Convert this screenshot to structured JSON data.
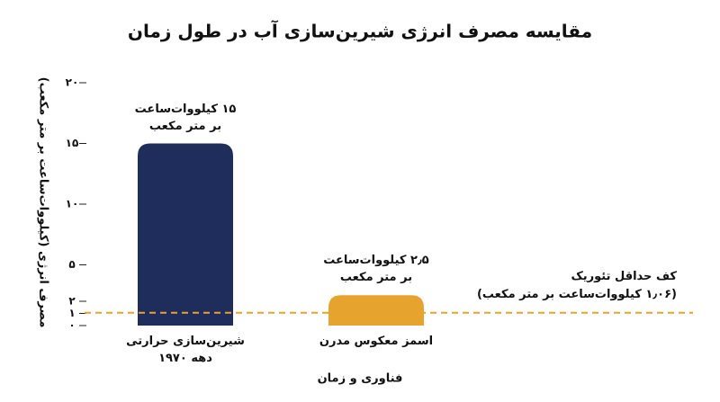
{
  "chart_data": {
    "type": "bar",
    "title": "مقایسه مصرف انرژی شیرین‌سازی آب در طول زمان",
    "y_label": "مصرف انرژی (کیلووات‌ساعت بر متر مکعب)",
    "x_label": "فناوری و زمان",
    "categories": [
      "شیرین‌سازی حرارتی دهه ۱۹۷۰",
      "اسمز معکوس مدرن"
    ],
    "values": [
      15,
      2.5
    ],
    "value_labels": [
      "۱۵ کیلووات‌ساعت بر متر مکعب",
      "۲٫۵ کیلووات‌ساعت بر متر مکعب"
    ],
    "colors": [
      "#1f2d5c",
      "#e6a42e"
    ],
    "ylim": [
      0,
      20
    ],
    "yticks": [
      {
        "value": 0,
        "label": "۰"
      },
      {
        "value": 1,
        "label": "۱"
      },
      {
        "value": 2,
        "label": "۲"
      },
      {
        "value": 5,
        "label": "۵"
      },
      {
        "value": 10,
        "label": "۱۰"
      },
      {
        "value": 15,
        "label": "۱۵"
      },
      {
        "value": 20,
        "label": "۲۰"
      }
    ],
    "reference_line": {
      "value": 1.06,
      "label": "کف حداقل تئوریک",
      "value_label": "(۱٫۰۶ کیلووات‌ساعت بر متر مکعب)",
      "color": "#e6a42e"
    }
  }
}
